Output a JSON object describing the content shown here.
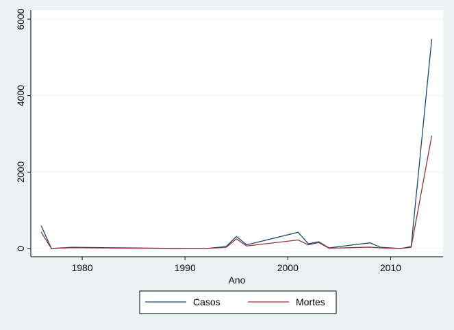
{
  "chart_data": {
    "type": "line",
    "xlabel": "Ano",
    "x": [
      1976,
      1977,
      1979,
      1989,
      1992,
      1994,
      1995,
      1996,
      2001,
      2002,
      2003,
      2004,
      2008,
      2009,
      2011,
      2012,
      2014
    ],
    "series": [
      {
        "name": "Casos",
        "color": "#1a476f",
        "values": [
          602,
          1,
          34,
          3,
          0,
          52,
          315,
          97,
          425,
          122,
          178,
          17,
          149,
          32,
          1,
          52,
          5480
        ]
      },
      {
        "name": "Mortes",
        "color": "#90353b",
        "values": [
          431,
          1,
          22,
          0,
          0,
          31,
          254,
          66,
          224,
          97,
          157,
          7,
          37,
          15,
          1,
          35,
          2950
        ]
      }
    ],
    "xlim": [
      1975,
      2015.1
    ],
    "xticks": [
      1980,
      1990,
      2000,
      2010
    ],
    "ylim": [
      -215,
      6233
    ],
    "yticks": [
      0,
      2000,
      4000,
      6000
    ],
    "grid": true
  }
}
